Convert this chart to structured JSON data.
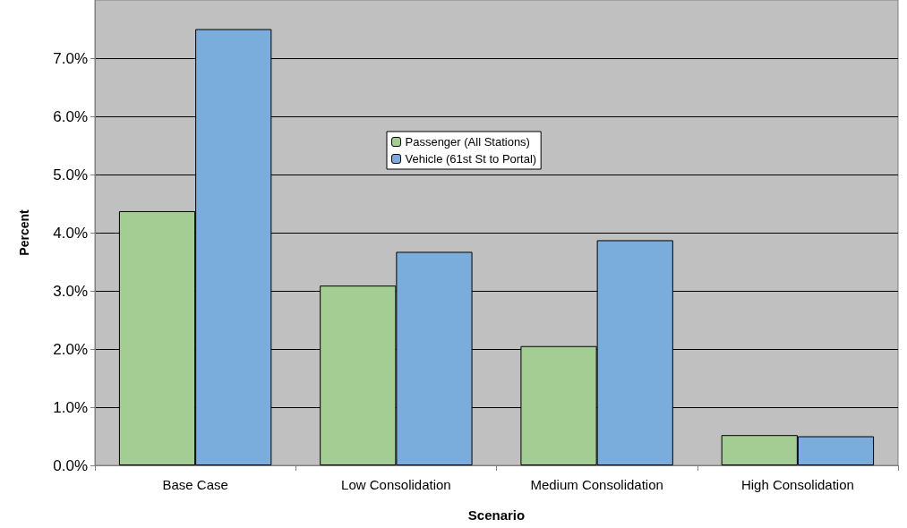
{
  "chart_data": {
    "type": "bar",
    "xlabel": "Scenario",
    "ylabel": "Percent",
    "categories": [
      "Base Case",
      "Low Consolidation",
      "Medium Consolidation",
      "High Consolidation"
    ],
    "series": [
      {
        "name": "Passenger (All Stations)",
        "color": "#a3cd93",
        "values": [
          4.37,
          3.09,
          2.05,
          0.52
        ]
      },
      {
        "name": "Vehicle (61st St to Portal)",
        "color": "#7aacdc",
        "values": [
          7.5,
          3.67,
          3.87,
          0.5
        ]
      }
    ],
    "ylim": [
      0,
      8
    ],
    "yticks": [
      {
        "value": 0,
        "label": "0.0%"
      },
      {
        "value": 1,
        "label": "1.0%"
      },
      {
        "value": 2,
        "label": "2.0%"
      },
      {
        "value": 3,
        "label": "3.0%"
      },
      {
        "value": 4,
        "label": "4.0%"
      },
      {
        "value": 5,
        "label": "5.0%"
      },
      {
        "value": 6,
        "label": "6.0%"
      },
      {
        "value": 7,
        "label": "7.0%"
      }
    ],
    "grid": "y",
    "legend": "center"
  }
}
